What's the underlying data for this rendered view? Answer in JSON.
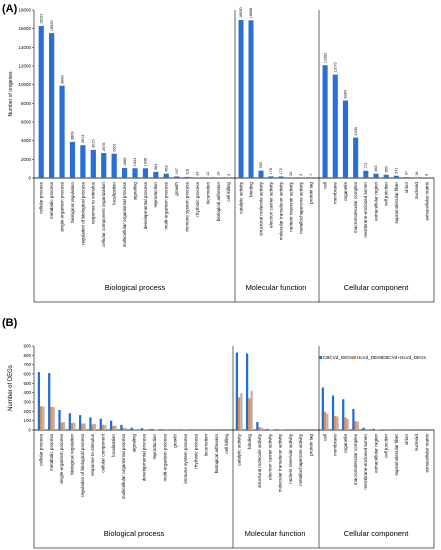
{
  "chart_data": [
    {
      "panel_label": "(A)",
      "type": "bar",
      "ylabel": "Number of unigenes",
      "ylim": [
        0,
        18000
      ],
      "yticks": [
        0,
        2000,
        4000,
        6000,
        8000,
        10000,
        12000,
        14000,
        16000,
        18000
      ],
      "grid": false,
      "groups": [
        {
          "name": "Biological process",
          "categories": [
            "cellular process",
            "metabolic process",
            "single-organism process",
            "biological regulation",
            "regulation of biological process",
            "response to stimulus",
            "cellular component organization",
            "localization",
            "multicellular organismal process",
            "signaling",
            "developmental process",
            "reproduction",
            "multi-organism process",
            "growth",
            "immune system process",
            "rhythmic process",
            "locomotion",
            "biological adhesion",
            "cell killing"
          ],
          "values": [
            16291,
            15525,
            9890,
            3869,
            3513,
            3015,
            2676,
            2601,
            1066,
            1044,
            1036,
            664,
            463,
            167,
            118,
            24,
            12,
            10,
            3
          ]
        },
        {
          "name": "Molecular function",
          "categories": [
            "catalytic activity",
            "binding",
            "structural molecule activity",
            "electron carrier activity",
            "molecular transducer activity",
            "nutrient reservoir activity",
            "metallochaperone activity",
            "protein tag"
          ],
          "values": [
            16930,
            16898,
            789,
            176,
            172,
            20,
            3,
            1
          ]
        },
        {
          "name": "Cellular component",
          "categories": [
            "cell",
            "membrane",
            "organelle",
            "macromolecular complex",
            "membrane-enclosed lumen",
            "extracellular region",
            "cell junction",
            "supramolecular fiber",
            "virion",
            "nucleoid",
            "extracellular matrix"
          ],
          "values": [
            12082,
            11075,
            8304,
            4330,
            772,
            463,
            355,
            241,
            97,
            16,
            9
          ]
        }
      ]
    },
    {
      "panel_label": "(B)",
      "type": "bar",
      "ylabel": "Number of DEGs",
      "ylim": [
        0,
        900
      ],
      "yticks": [
        0,
        100,
        200,
        300,
        400,
        500,
        600,
        700,
        800,
        900
      ],
      "grid": false,
      "legend_position": "top-right",
      "series": [
        {
          "name": "CBCVd_DEGs",
          "color": "#1f6fd1"
        },
        {
          "name": "HLVd_DEGs",
          "color": "#f08a3c"
        },
        {
          "name": "CBCVd+HLVd_DEGs",
          "color": "#b4b4b4"
        }
      ],
      "groups": [
        {
          "name": "Biological process",
          "categories": [
            "cellular process",
            "metabolic process",
            "single-organism process",
            "biological regulation",
            "regulation of biological process",
            "response to stimulus",
            "cellular component",
            "localization",
            "multicellular organismal process",
            "signaling",
            "developmental process",
            "reproduction",
            "multi-organism process",
            "growth",
            "immune system process",
            "rhythmic process",
            "locomotion",
            "biological adhesion",
            "cell killing"
          ],
          "values": [
            [
              620,
              255,
              250
            ],
            [
              610,
              250,
              245
            ],
            [
              215,
              80,
              85
            ],
            [
              180,
              75,
              80
            ],
            [
              160,
              70,
              70
            ],
            [
              135,
              60,
              65
            ],
            [
              120,
              55,
              55
            ],
            [
              100,
              45,
              45
            ],
            [
              55,
              20,
              22
            ],
            [
              25,
              10,
              10
            ],
            [
              20,
              8,
              8
            ],
            [
              12,
              5,
              5
            ],
            [
              8,
              3,
              3
            ],
            [
              6,
              2,
              2
            ],
            [
              5,
              2,
              2
            ],
            [
              3,
              1,
              1
            ],
            [
              2,
              1,
              1
            ],
            [
              1,
              0,
              0
            ],
            [
              1,
              0,
              0
            ]
          ]
        },
        {
          "name": "Molecular function",
          "categories": [
            "catalytic activity",
            "binding",
            "structural molecule activity",
            "electron carrier activity",
            "molecular transducer activity",
            "nutrient reservoir activity",
            "metallochaperone activity",
            "protein tag"
          ],
          "values": [
            [
              830,
              350,
              395
            ],
            [
              820,
              340,
              420
            ],
            [
              85,
              30,
              25
            ],
            [
              12,
              5,
              5
            ],
            [
              8,
              3,
              3
            ],
            [
              2,
              1,
              1
            ],
            [
              1,
              0,
              0
            ],
            [
              1,
              0,
              0
            ]
          ]
        },
        {
          "name": "Cellular component",
          "categories": [
            "cell",
            "membrane",
            "organelle",
            "macromolecular complex",
            "membrane-enclosed lumen",
            "extracellular region",
            "cell junction",
            "supramolecular fiber",
            "virion",
            "nucleoid",
            "extracellular matrix"
          ],
          "values": [
            [
              455,
              195,
              175
            ],
            [
              370,
              150,
              145
            ],
            [
              330,
              135,
              120
            ],
            [
              225,
              95,
              90
            ],
            [
              25,
              10,
              10
            ],
            [
              12,
              5,
              5
            ],
            [
              6,
              2,
              2
            ],
            [
              4,
              1,
              1
            ],
            [
              2,
              1,
              1
            ],
            [
              1,
              0,
              0
            ],
            [
              1,
              0,
              0
            ]
          ]
        }
      ]
    }
  ]
}
